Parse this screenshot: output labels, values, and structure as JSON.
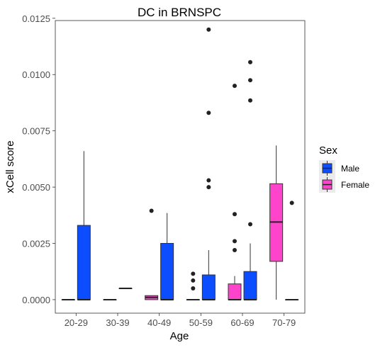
{
  "chart_data": {
    "type": "boxplot",
    "title": "DC in BRNSPC",
    "xlabel": "Age",
    "ylabel": "xCell score",
    "ylim": [
      -0.0006,
      0.0124
    ],
    "yticks": [
      "0.0000",
      "0.0025",
      "0.0050",
      "0.0075",
      "0.0100",
      "0.0125"
    ],
    "categories": [
      "20-29",
      "30-39",
      "40-49",
      "50-59",
      "60-69",
      "70-79"
    ],
    "legend": {
      "title": "Sex",
      "position": "right",
      "items": [
        {
          "label": "Male",
          "color": "#0c4dff"
        },
        {
          "label": "Female",
          "color": "#ff44cc"
        }
      ]
    },
    "series": [
      {
        "name": "Male",
        "color": "#0c4dff",
        "boxes": [
          {
            "category": "20-29",
            "min": 0,
            "q1": 0,
            "median": 0,
            "q3": 0.0033,
            "max": 0.0066,
            "outliers": []
          },
          {
            "category": "30-39",
            "min": 0.0005,
            "q1": 0.0005,
            "median": 0.0005,
            "q3": 0.0005,
            "max": 0.0005,
            "outliers": []
          },
          {
            "category": "40-49",
            "min": 0,
            "q1": 0,
            "median": 0,
            "q3": 0.0025,
            "max": 0.00385,
            "outliers": []
          },
          {
            "category": "50-59",
            "min": 0,
            "q1": 0,
            "median": 0,
            "q3": 0.0011,
            "max": 0.0022,
            "outliers": [
              0.012,
              0.0083,
              0.0053,
              0.005
            ]
          },
          {
            "category": "60-69",
            "min": 0,
            "q1": 0,
            "median": 0,
            "q3": 0.00125,
            "max": 0.0025,
            "outliers": [
              0.01055,
              0.00975,
              0.00885,
              0.00335
            ]
          },
          {
            "category": "70-79",
            "min": 0,
            "q1": 0,
            "median": 0,
            "q3": 0,
            "max": 0,
            "outliers": [
              0.0043
            ]
          }
        ]
      },
      {
        "name": "Female",
        "color": "#ff44cc",
        "boxes": [
          {
            "category": "20-29",
            "min": 0,
            "q1": 0,
            "median": 0,
            "q3": 0,
            "max": 0,
            "outliers": []
          },
          {
            "category": "30-39",
            "min": 0,
            "q1": 0,
            "median": 0,
            "q3": 0,
            "max": 0,
            "outliers": []
          },
          {
            "category": "40-49",
            "min": 0,
            "q1": 0,
            "median": 0.0001,
            "q3": 0.00018,
            "max": 0.00018,
            "outliers": [
              0.00395
            ]
          },
          {
            "category": "50-59",
            "min": 0,
            "q1": 0,
            "median": 0,
            "q3": 0,
            "max": 0,
            "outliers": [
              0.00115,
              0.00085,
              0.0005
            ]
          },
          {
            "category": "60-69",
            "min": 0,
            "q1": 0,
            "median": 0,
            "q3": 0.0007,
            "max": 0.00105,
            "outliers": [
              0.0095,
              0.0038,
              0.0026,
              0.0022
            ]
          },
          {
            "category": "70-79",
            "min": 0,
            "q1": 0.0017,
            "median": 0.00345,
            "q3": 0.00515,
            "max": 0.00685,
            "outliers": []
          }
        ]
      }
    ]
  }
}
